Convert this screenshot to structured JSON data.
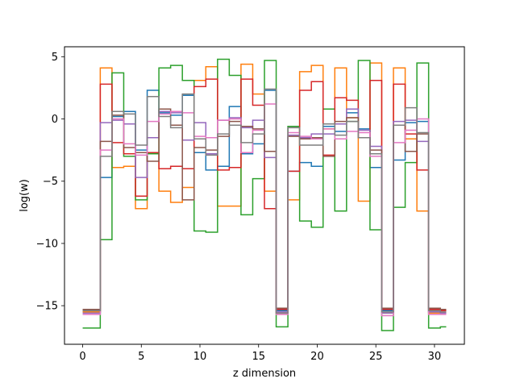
{
  "chart_data": {
    "type": "line",
    "drawstyle": "steps-mid",
    "xlabel": "z dimension",
    "ylabel": "log(w)",
    "xlim": [
      -1.55,
      32.55
    ],
    "ylim": [
      -18.1,
      5.8
    ],
    "xticks": [
      0,
      5,
      10,
      15,
      20,
      25,
      30
    ],
    "yticks": [
      5,
      0,
      -5,
      -10,
      -15
    ],
    "ytick_labels": [
      "5",
      "0",
      "−5",
      "−10",
      "−15"
    ],
    "grid": false,
    "x": [
      0,
      1,
      2,
      3,
      4,
      5,
      6,
      7,
      8,
      9,
      10,
      11,
      12,
      13,
      14,
      15,
      16,
      17,
      18,
      19,
      20,
      21,
      22,
      23,
      24,
      25,
      26,
      27,
      28,
      29,
      30,
      31
    ],
    "series": [
      {
        "color": "#1f77b4",
        "values": [
          -15.5,
          -15.5,
          -4.7,
          0.2,
          0.6,
          -2.5,
          2.3,
          0.5,
          0.3,
          1.9,
          -2.7,
          -4.1,
          -3.8,
          1.0,
          -2.8,
          -2.0,
          2.3,
          -15.4,
          -4.2,
          -3.5,
          -3.8,
          -0.6,
          -1.0,
          0.5,
          -0.8,
          -3.9,
          -15.4,
          -3.3,
          -0.3,
          -0.2,
          -15.5,
          -15.4
        ]
      },
      {
        "color": "#ff7f0e",
        "values": [
          -15.5,
          -15.5,
          4.1,
          -3.9,
          -3.8,
          -7.2,
          -2.8,
          -5.8,
          -6.7,
          -5.5,
          3.1,
          4.2,
          -7.0,
          -7.0,
          4.4,
          2.0,
          -5.8,
          -15.6,
          -6.5,
          3.8,
          4.3,
          -0.8,
          4.1,
          0.1,
          -6.6,
          4.5,
          -15.6,
          4.1,
          -1.6,
          -7.4,
          -15.6,
          -15.6
        ]
      },
      {
        "color": "#2ca02c",
        "values": [
          -16.8,
          -16.8,
          -9.7,
          3.7,
          -3.0,
          -6.5,
          -2.8,
          4.1,
          4.3,
          3.1,
          -9.0,
          -9.1,
          4.8,
          3.5,
          -7.7,
          -4.8,
          4.7,
          -16.7,
          -0.6,
          -8.2,
          -8.7,
          0.8,
          -7.4,
          -0.2,
          4.7,
          -8.9,
          -17.0,
          -7.1,
          -3.5,
          4.5,
          -16.8,
          -16.7
        ]
      },
      {
        "color": "#d62728",
        "values": [
          -15.4,
          -15.4,
          2.8,
          -1.9,
          -2.8,
          -6.2,
          -2.7,
          -4.0,
          -3.8,
          -4.0,
          2.6,
          3.2,
          -4.1,
          -3.9,
          3.2,
          1.1,
          -7.2,
          -15.3,
          -4.2,
          2.3,
          3.0,
          -2.9,
          1.7,
          1.5,
          -1.5,
          3.1,
          -15.3,
          2.8,
          -1.2,
          -4.1,
          -15.3,
          -15.4
        ]
      },
      {
        "color": "#9467bd",
        "values": [
          -15.6,
          -15.6,
          -0.3,
          -0.1,
          -0.4,
          -4.7,
          -1.5,
          0.6,
          0.5,
          -1.7,
          -0.3,
          -2.8,
          -0.1,
          0.1,
          -0.7,
          -0.1,
          -3.1,
          -15.5,
          -1.3,
          -1.5,
          -1.2,
          -1.2,
          -0.4,
          0.8,
          -0.9,
          -2.2,
          -15.6,
          -0.2,
          -0.1,
          -1.8,
          -15.5,
          -15.6
        ]
      },
      {
        "color": "#8c564b",
        "values": [
          -15.3,
          -15.3,
          -1.8,
          0.3,
          -2.3,
          -2.7,
          -3.4,
          0.8,
          -0.5,
          -6.5,
          -2.3,
          -2.5,
          -1.4,
          -0.2,
          -0.6,
          -0.8,
          -2.6,
          -15.2,
          -1.4,
          -1.6,
          -1.5,
          -3.0,
          -0.2,
          0.1,
          -1.5,
          -2.5,
          -15.2,
          -0.5,
          -2.6,
          -1.2,
          -15.2,
          -15.3
        ]
      },
      {
        "color": "#e377c2",
        "values": [
          -15.7,
          -15.7,
          -2.5,
          0.0,
          -2.0,
          -2.9,
          -0.2,
          0.4,
          0.6,
          0.5,
          -1.4,
          -1.5,
          -0.1,
          0.0,
          -2.7,
          -0.9,
          1.2,
          -15.7,
          -1.1,
          -1.4,
          -1.6,
          -0.8,
          -1.6,
          -1.0,
          -1.1,
          -3.0,
          -15.8,
          -1.9,
          -0.9,
          0.0,
          -15.7,
          -15.7
        ]
      },
      {
        "color": "#7f7f7f",
        "values": [
          -15.4,
          -15.4,
          -3.0,
          0.6,
          0.4,
          -2.1,
          1.8,
          0.2,
          -0.7,
          2.0,
          -1.6,
          -2.9,
          -1.2,
          -0.5,
          -1.9,
          -1.2,
          2.4,
          -15.6,
          -0.7,
          -2.1,
          -2.1,
          -0.4,
          -1.3,
          -0.2,
          -1.5,
          -2.8,
          -15.5,
          -0.5,
          0.9,
          -1.1,
          -15.4,
          -15.5
        ]
      }
    ]
  }
}
